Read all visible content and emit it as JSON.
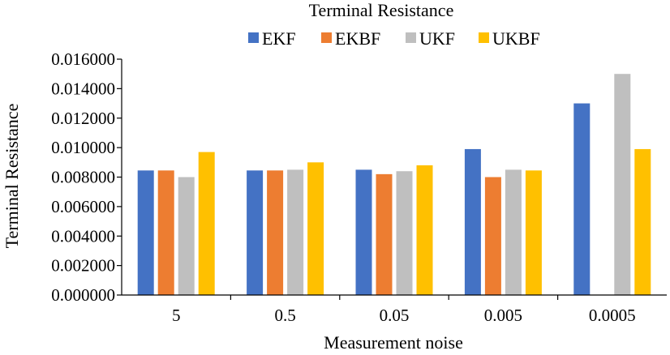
{
  "chart_data": {
    "type": "bar",
    "title": "Terminal Resistance",
    "xlabel": "Measurement noise",
    "ylabel": "Terminal Resistance",
    "categories": [
      "5",
      "0.5",
      "0.05",
      "0.005",
      "0.0005"
    ],
    "series": [
      {
        "name": "EKF",
        "color": "#4472C4",
        "values": [
          0.00845,
          0.00845,
          0.0085,
          0.0099,
          0.013
        ]
      },
      {
        "name": "EKBF",
        "color": "#ED7D31",
        "values": [
          0.00845,
          0.00845,
          0.0082,
          0.008,
          0.0
        ]
      },
      {
        "name": "UKF",
        "color": "#BFBFBF",
        "values": [
          0.008,
          0.0085,
          0.0084,
          0.0085,
          0.015
        ]
      },
      {
        "name": "UKBF",
        "color": "#FFC000",
        "values": [
          0.0097,
          0.009,
          0.0088,
          0.00845,
          0.0099
        ]
      }
    ],
    "ylim": [
      0,
      0.016
    ],
    "yticks": [
      "0.000000",
      "0.002000",
      "0.004000",
      "0.006000",
      "0.008000",
      "0.010000",
      "0.012000",
      "0.014000",
      "0.016000"
    ],
    "grid": false,
    "legend_position": "top"
  }
}
